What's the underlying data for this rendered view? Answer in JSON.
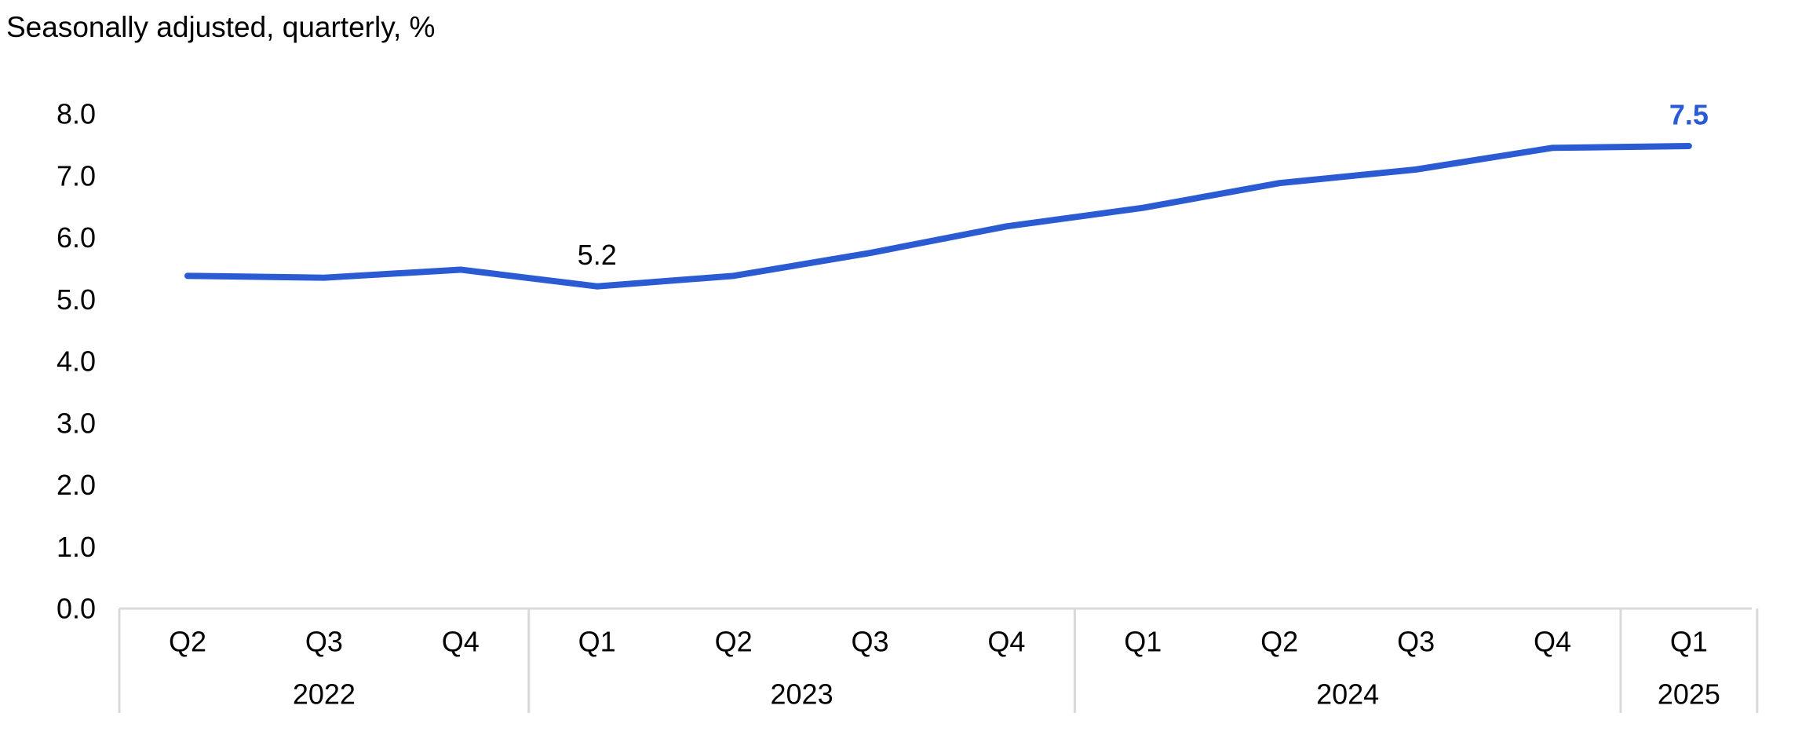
{
  "chart_data": {
    "type": "line",
    "subtitle": "Seasonally adjusted, quarterly, %",
    "ylim": [
      0,
      8
    ],
    "yticks": [
      "0.0",
      "1.0",
      "2.0",
      "3.0",
      "4.0",
      "5.0",
      "6.0",
      "7.0",
      "8.0"
    ],
    "categories": [
      "Q2",
      "Q3",
      "Q4",
      "Q1",
      "Q2",
      "Q3",
      "Q4",
      "Q1",
      "Q2",
      "Q3",
      "Q4",
      "Q1"
    ],
    "years": [
      {
        "label": "2022",
        "start": 0,
        "end": 2
      },
      {
        "label": "2023",
        "start": 3,
        "end": 6
      },
      {
        "label": "2024",
        "start": 7,
        "end": 10
      },
      {
        "label": "2025",
        "start": 11,
        "end": 11
      }
    ],
    "series": [
      {
        "values": [
          5.38,
          5.35,
          5.48,
          5.21,
          5.38,
          5.75,
          6.18,
          6.48,
          6.88,
          7.1,
          7.45,
          7.48
        ],
        "color": "#2a5bd2"
      }
    ],
    "annotations": [
      {
        "index": 3,
        "text": "5.2",
        "color": "#000000",
        "bold": false
      },
      {
        "index": 11,
        "text": "7.5",
        "color": "#2a5bd2",
        "bold": true
      }
    ],
    "grid": false
  }
}
